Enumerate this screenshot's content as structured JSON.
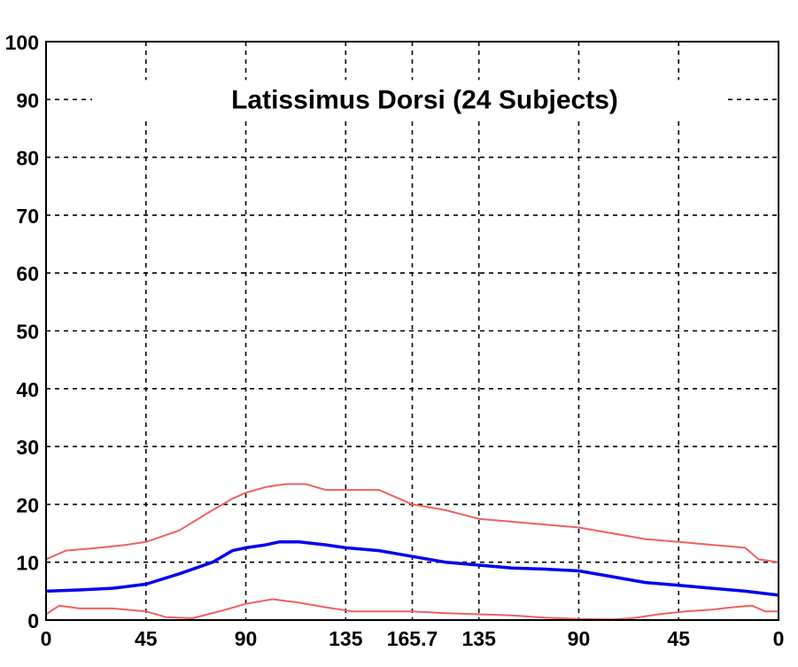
{
  "chart_data": {
    "type": "line",
    "title": "Latissimus Dorsi (24 Subjects)",
    "xlabel": "",
    "ylabel": "",
    "ylim": [
      0,
      100
    ],
    "xlim": [
      0,
      11
    ],
    "grid": true,
    "x_ticks": [
      {
        "pos": 0,
        "label": "0"
      },
      {
        "pos": 1.5,
        "label": "45"
      },
      {
        "pos": 3,
        "label": "90"
      },
      {
        "pos": 4.5,
        "label": "135"
      },
      {
        "pos": 5.5,
        "label": "165.7"
      },
      {
        "pos": 6.5,
        "label": "135"
      },
      {
        "pos": 8,
        "label": "90"
      },
      {
        "pos": 9.5,
        "label": "45"
      },
      {
        "pos": 11,
        "label": "0"
      }
    ],
    "y_ticks": [
      0,
      10,
      20,
      30,
      40,
      50,
      60,
      70,
      80,
      90,
      100
    ],
    "colors": {
      "mean": "#0000ee",
      "bounds": "#f06060",
      "grid": "#000000"
    },
    "series": [
      {
        "role": "upper",
        "x": [
          0,
          0.3,
          0.8,
          1.2,
          1.5,
          2.0,
          2.5,
          2.8,
          3.0,
          3.3,
          3.6,
          3.9,
          4.2,
          4.5,
          4.8,
          5.0,
          5.3,
          5.5,
          6.0,
          6.5,
          7.0,
          7.5,
          8.0,
          8.5,
          9.0,
          9.5,
          10.0,
          10.5,
          10.7,
          11.0
        ],
        "y": [
          10.5,
          12,
          12.5,
          13,
          13.5,
          15.5,
          19,
          21,
          22,
          23,
          23.5,
          23.5,
          22.5,
          22.5,
          22.5,
          22.5,
          21,
          20,
          19,
          17.5,
          17,
          16.5,
          16,
          15,
          14,
          13.5,
          13,
          12.5,
          10.5,
          10
        ]
      },
      {
        "role": "mean",
        "x": [
          0,
          0.5,
          1.0,
          1.5,
          2.0,
          2.5,
          2.8,
          3.0,
          3.3,
          3.5,
          3.8,
          4.2,
          4.5,
          5.0,
          5.5,
          6.0,
          6.5,
          7.0,
          7.5,
          8.0,
          8.5,
          9.0,
          9.5,
          10.0,
          10.5,
          11.0
        ],
        "y": [
          5,
          5.2,
          5.5,
          6.2,
          8,
          10,
          12,
          12.5,
          13,
          13.5,
          13.5,
          13,
          12.5,
          12,
          11,
          10,
          9.5,
          9,
          8.8,
          8.5,
          7.5,
          6.5,
          6,
          5.5,
          5,
          4.3
        ]
      },
      {
        "role": "lower",
        "x": [
          0,
          0.2,
          0.5,
          1.0,
          1.5,
          1.8,
          2.2,
          2.7,
          3.0,
          3.4,
          3.8,
          4.2,
          4.6,
          5.0,
          5.5,
          6.0,
          6.5,
          7.0,
          7.5,
          8.0,
          8.5,
          8.8,
          9.2,
          9.6,
          10.0,
          10.3,
          10.6,
          10.8,
          11.0
        ],
        "y": [
          1,
          2.5,
          2,
          2,
          1.5,
          0.5,
          0.3,
          1.8,
          2.8,
          3.6,
          3,
          2.2,
          1.5,
          1.5,
          1.5,
          1.2,
          1,
          0.8,
          0.4,
          0.2,
          0.1,
          0.3,
          1,
          1.5,
          1.8,
          2.2,
          2.5,
          1.5,
          1.5
        ]
      }
    ]
  }
}
